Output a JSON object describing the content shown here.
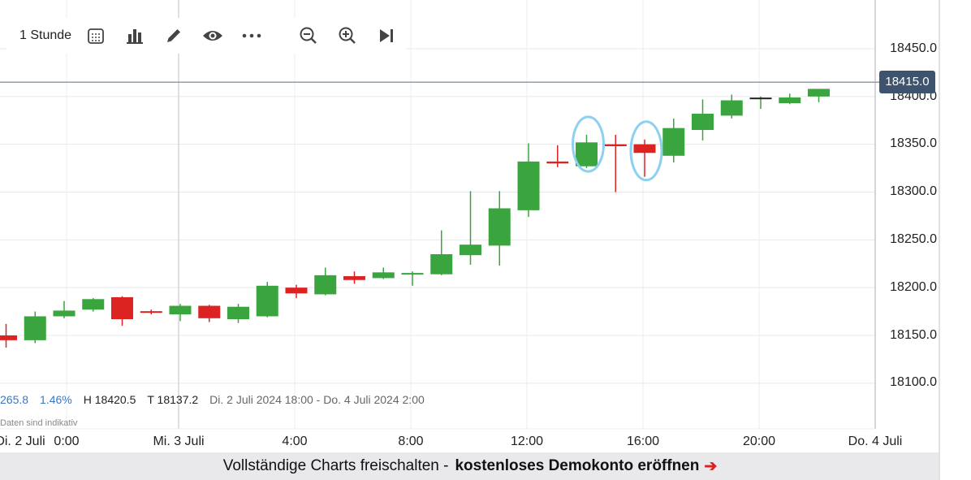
{
  "toolbar": {
    "interval_label": "1 Stunde",
    "icons": [
      "calendar-icon",
      "bar-chart-icon",
      "pencil-icon",
      "eye-icon",
      "more-icon",
      "zoom-out-icon",
      "zoom-in-icon",
      "jump-to-end-icon"
    ]
  },
  "price_axis": {
    "labels": [
      "18450.0",
      "18400.0",
      "18350.0",
      "18300.0",
      "18250.0",
      "18200.0",
      "18150.0",
      "18100.0"
    ],
    "last_price": "18415.0"
  },
  "info": {
    "change": "265.8",
    "change_pct": "1.46%",
    "high": "H 18420.5",
    "low": "T 18137.2",
    "range": "Di. 2 Juli 2024 18:00 - Do. 4 Juli 2024 2:00",
    "disclaimer": "Daten sind indikativ"
  },
  "time_axis": {
    "labels": [
      "Di. 2 Juli",
      "0:00",
      "Mi. 3 Juli",
      "4:00",
      "8:00",
      "12:00",
      "16:00",
      "20:00",
      "Do. 4 Juli"
    ]
  },
  "banner": {
    "text": "Vollständige Charts freischalten -",
    "cta": "kostenloses Demokonto eröffnen",
    "arrow": "➔"
  },
  "colors": {
    "up": "#3aa53e",
    "down": "#dd2222",
    "annotation": "#8dd0f0",
    "last_price_bg": "#3e546e"
  },
  "chart_data": {
    "type": "candlestick",
    "interval": "1 Stunde",
    "x_unit": "hour",
    "x": [
      "2024-07-02 18:00",
      "2024-07-02 19:00",
      "2024-07-02 20:00",
      "2024-07-02 21:00",
      "2024-07-02 22:00",
      "2024-07-02 23:00",
      "2024-07-03 00:00",
      "2024-07-03 01:00",
      "2024-07-03 02:00",
      "2024-07-03 03:00",
      "2024-07-03 04:00",
      "2024-07-03 05:00",
      "2024-07-03 06:00",
      "2024-07-03 07:00",
      "2024-07-03 08:00",
      "2024-07-03 09:00",
      "2024-07-03 10:00",
      "2024-07-03 11:00",
      "2024-07-03 12:00",
      "2024-07-03 13:00",
      "2024-07-03 14:00",
      "2024-07-03 15:00",
      "2024-07-03 16:00",
      "2024-07-03 17:00",
      "2024-07-03 18:00",
      "2024-07-03 19:00",
      "2024-07-03 20:00",
      "2024-07-03 21:00",
      "2024-07-03 22:00"
    ],
    "open": [
      18150,
      18145,
      18170,
      18177,
      18190,
      18175,
      18172,
      18181,
      18167,
      18170,
      18200,
      18193,
      18212,
      18210,
      18214,
      18214,
      18234,
      18244,
      18281,
      18332,
      18327,
      18350,
      18350,
      18338,
      18365,
      18380,
      18398,
      18393,
      18400
    ],
    "high": [
      18162,
      18175,
      18186,
      18189,
      18191,
      18177,
      18183,
      18182,
      18183,
      18206,
      18203,
      18221,
      18217,
      18221,
      18217,
      18260,
      18301,
      18301,
      18351,
      18349,
      18360,
      18360,
      18355,
      18377,
      18397,
      18402,
      18400,
      18403,
      18406
    ],
    "low": [
      18137.2,
      18142,
      18168,
      18175,
      18160,
      18172,
      18165,
      18164,
      18163,
      18169,
      18189,
      18192,
      18204,
      18209,
      18202,
      18213,
      18224,
      18223,
      18274,
      18326,
      18325,
      18300,
      18316,
      18331,
      18354,
      18377,
      18387,
      18392,
      18394
    ],
    "close": [
      18145,
      18170,
      18176,
      18188,
      18167,
      18174,
      18181,
      18168,
      18180,
      18202,
      18194,
      18213,
      18208,
      18216,
      18215,
      18235,
      18245,
      18283,
      18332,
      18330,
      18352,
      18348,
      18341,
      18367,
      18382,
      18396,
      18398,
      18399,
      18408
    ],
    "ylim": [
      18055,
      18470
    ],
    "yticks": [
      18100,
      18150,
      18200,
      18250,
      18300,
      18350,
      18400,
      18450
    ],
    "last_price": 18415.0,
    "change": 265.8,
    "change_pct": 1.46,
    "period_high": 18420.5,
    "period_low": 18137.2,
    "grid": true,
    "annotations": [
      {
        "type": "ellipse",
        "x": "2024-07-03 14:00"
      },
      {
        "type": "ellipse",
        "x": "2024-07-03 16:00"
      }
    ]
  }
}
